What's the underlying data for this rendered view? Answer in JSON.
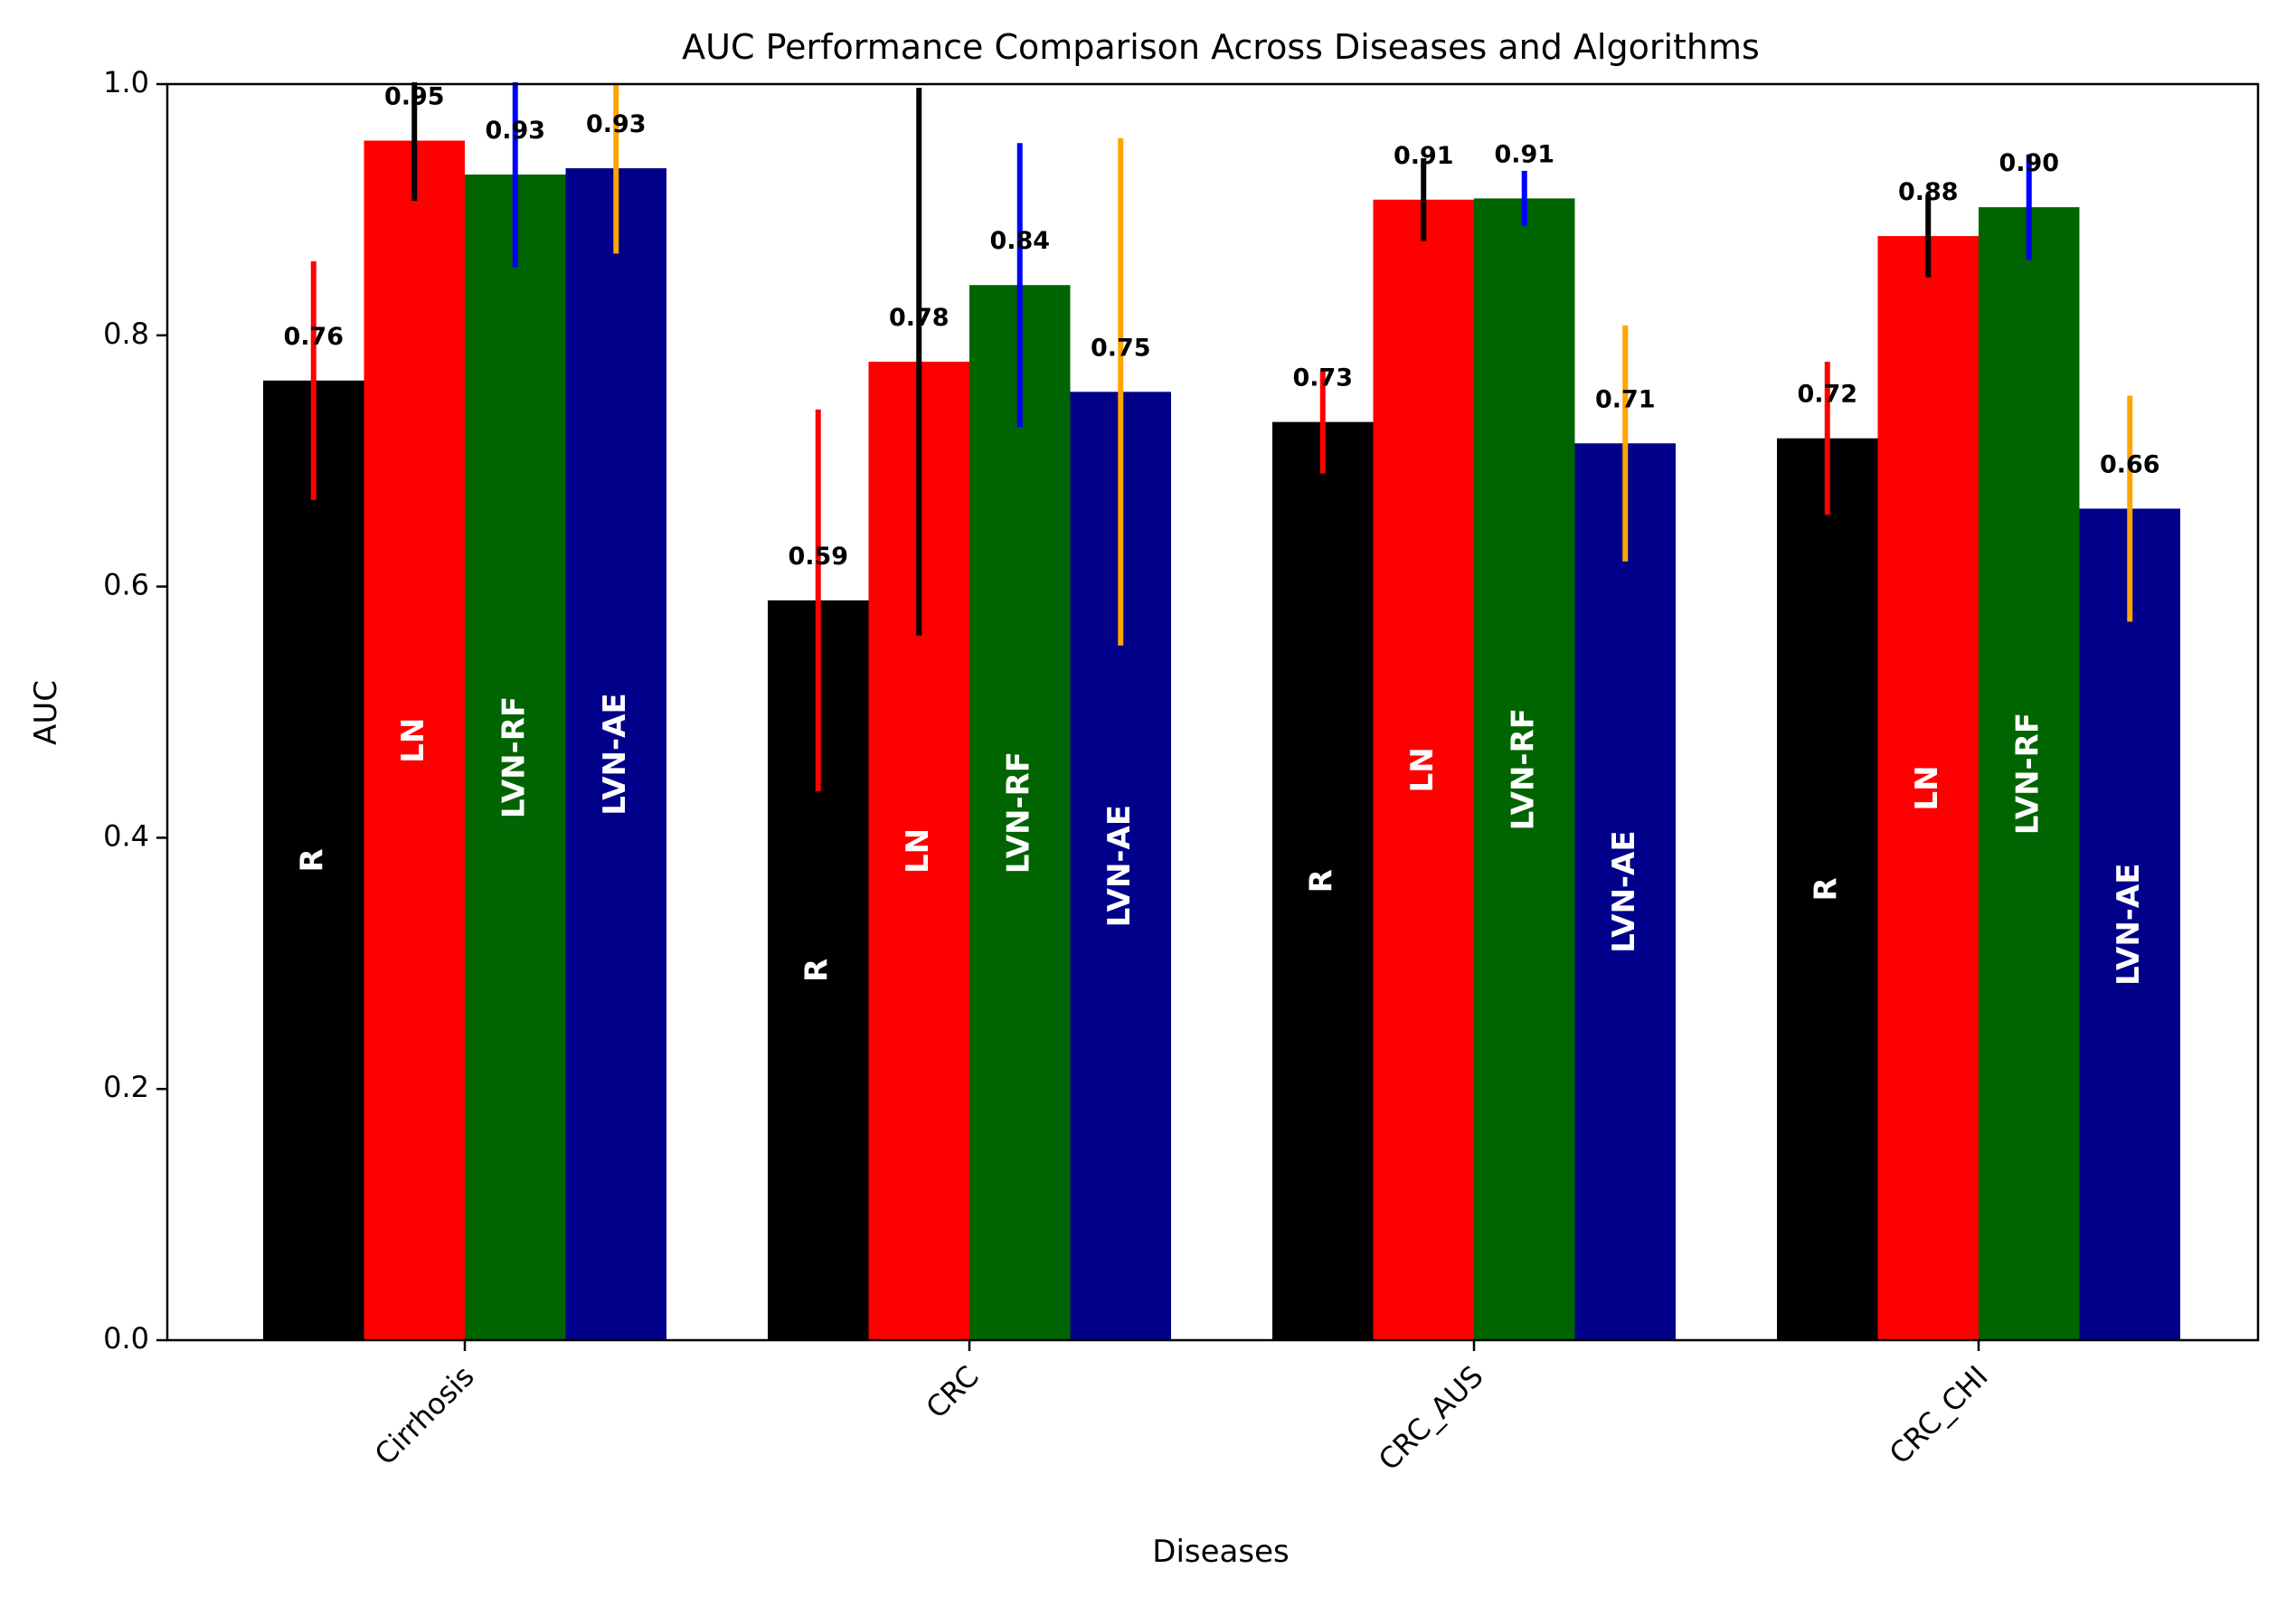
{
  "chart_data": {
    "type": "bar",
    "title": "AUC Performance Comparison Across Diseases and Algorithms",
    "xlabel": "Diseases",
    "ylabel": "AUC",
    "ylim": [
      0.0,
      1.0
    ],
    "yticks": [
      0.0,
      0.2,
      0.4,
      0.6,
      0.8,
      1.0
    ],
    "ytick_labels": [
      "0.0",
      "0.2",
      "0.4",
      "0.6",
      "0.8",
      "1.0"
    ],
    "categories": [
      "Cirrhosis",
      "CRC",
      "CRC_AUS",
      "CRC_CHI"
    ],
    "grid": false,
    "legend": "none",
    "series": [
      {
        "name": "R",
        "bar_color": "#000000",
        "error_color": "#ff0000",
        "values": [
          0.764,
          0.589,
          0.731,
          0.718
        ],
        "errors": [
          0.095,
          0.152,
          0.041,
          0.061
        ],
        "value_labels": [
          "0.76",
          "0.59",
          "0.73",
          "0.72"
        ]
      },
      {
        "name": "LN",
        "bar_color": "#ff0000",
        "error_color": "#000000",
        "values": [
          0.955,
          0.779,
          0.908,
          0.879
        ],
        "errors": [
          0.048,
          0.218,
          0.033,
          0.033
        ],
        "value_labels": [
          "0.95",
          "0.78",
          "0.91",
          "0.88"
        ]
      },
      {
        "name": "LVN-RF",
        "bar_color": "#006400",
        "error_color": "#0000ff",
        "values": [
          0.928,
          0.84,
          0.909,
          0.902
        ],
        "errors": [
          0.074,
          0.113,
          0.022,
          0.042
        ],
        "value_labels": [
          "0.93",
          "0.84",
          "0.91",
          "0.90"
        ]
      },
      {
        "name": "LVN-AE",
        "bar_color": "#00008b",
        "error_color": "#ffa500",
        "values": [
          0.933,
          0.755,
          0.714,
          0.662
        ],
        "errors": [
          0.068,
          0.202,
          0.094,
          0.09
        ],
        "value_labels": [
          "0.93",
          "0.75",
          "0.71",
          "0.66"
        ]
      }
    ]
  }
}
